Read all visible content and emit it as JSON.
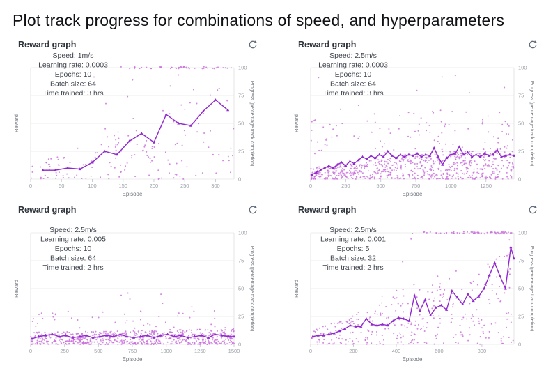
{
  "page_title": "Plot track progress for combinations of speed, and hyperparameters",
  "axes": {
    "x_label": "Episode",
    "y_left_label": "Reward",
    "y_right_label": "Progress (percentage track completion)",
    "right_ticks": [
      0,
      25,
      50,
      75,
      100
    ],
    "ylim": [
      0,
      100
    ],
    "grid": "horizontal-only",
    "legend": "none"
  },
  "colors": {
    "line": "#9128ce",
    "scatter": "#c86adb",
    "grid": "#ececec",
    "plot_border": "#e4e4e4",
    "tick_text": "#9aa0a6",
    "axis_label": "#6f757d",
    "annotation": "#3f454d",
    "panel_title": "#2f353d",
    "icon": "#5f6b7a",
    "page_title": "#0f1114"
  },
  "chart_data": [
    {
      "id": "speed-1ms-lr00003",
      "type": "scatter",
      "title": "Reward graph",
      "annotation": [
        "Speed: 1m/s",
        "Learning rate: 0.0003",
        "Epochs: 10",
        "Batch size: 64",
        "Time trained: 3 hrs"
      ],
      "hyperparameters": {
        "speed": "1m/s",
        "learning_rate": "0.0003",
        "epochs": 10,
        "batch_size": 64,
        "time_trained": "3 hrs"
      },
      "x_ticks": [
        0,
        50,
        100,
        150,
        200,
        250,
        300
      ],
      "x_max": 330,
      "ann_y": 11,
      "line": [
        [
          20,
          8
        ],
        [
          40,
          8
        ],
        [
          60,
          10
        ],
        [
          80,
          9
        ],
        [
          100,
          15
        ],
        [
          120,
          25
        ],
        [
          140,
          22
        ],
        [
          160,
          34
        ],
        [
          180,
          41
        ],
        [
          200,
          33
        ],
        [
          220,
          58
        ],
        [
          240,
          50
        ],
        [
          260,
          48
        ],
        [
          280,
          61
        ],
        [
          300,
          71
        ],
        [
          320,
          62
        ]
      ],
      "scatter": {
        "seed": 11,
        "count": 150,
        "band_base": 13,
        "band_rise": 75,
        "pow": 1.35,
        "extras": [
          {
            "frac": 0.07,
            "ymin": 35,
            "ymax": 95,
            "xmin_frac": 0.3
          }
        ],
        "top_row": {
          "from": 130,
          "to": 330,
          "count": 44
        }
      }
    },
    {
      "id": "speed-25ms-lr00003",
      "type": "scatter",
      "title": "Reward graph",
      "annotation": [
        "Speed: 2.5m/s",
        "Learning rate: 0.0003",
        "Epochs: 10",
        "Batch size: 64",
        "Time trained: 3 hrs"
      ],
      "hyperparameters": {
        "speed": "2.5m/s",
        "learning_rate": "0.0003",
        "epochs": 10,
        "batch_size": 64,
        "time_trained": "3 hrs"
      },
      "x_ticks": [
        0,
        250,
        500,
        750,
        1000,
        1250
      ],
      "x_max": 1450,
      "ann_y": 11,
      "line": [
        [
          10,
          4
        ],
        [
          40,
          6
        ],
        [
          70,
          8
        ],
        [
          100,
          10
        ],
        [
          130,
          12
        ],
        [
          160,
          10
        ],
        [
          190,
          13
        ],
        [
          220,
          15
        ],
        [
          250,
          12
        ],
        [
          280,
          16
        ],
        [
          310,
          14
        ],
        [
          340,
          17
        ],
        [
          370,
          20
        ],
        [
          400,
          18
        ],
        [
          430,
          21
        ],
        [
          460,
          19
        ],
        [
          490,
          22
        ],
        [
          520,
          20
        ],
        [
          550,
          25
        ],
        [
          580,
          21
        ],
        [
          610,
          19
        ],
        [
          640,
          22
        ],
        [
          670,
          20
        ],
        [
          700,
          22
        ],
        [
          730,
          21
        ],
        [
          760,
          23
        ],
        [
          790,
          20
        ],
        [
          820,
          22
        ],
        [
          850,
          21
        ],
        [
          880,
          28
        ],
        [
          910,
          20
        ],
        [
          940,
          13
        ],
        [
          970,
          19
        ],
        [
          1000,
          22
        ],
        [
          1030,
          23
        ],
        [
          1060,
          29
        ],
        [
          1090,
          22
        ],
        [
          1120,
          24
        ],
        [
          1150,
          20
        ],
        [
          1180,
          22
        ],
        [
          1210,
          20
        ],
        [
          1240,
          23
        ],
        [
          1270,
          21
        ],
        [
          1300,
          22
        ],
        [
          1330,
          26
        ],
        [
          1360,
          20
        ],
        [
          1390,
          21
        ],
        [
          1420,
          22
        ],
        [
          1450,
          21
        ]
      ],
      "scatter": {
        "seed": 22,
        "count": 640,
        "band_base": 11,
        "band_rise": 20,
        "pow": 1.3,
        "extras": [
          {
            "frac": 0.15,
            "ymin": 22,
            "ymax": 60
          },
          {
            "frac": 0.02,
            "ymin": 58,
            "ymax": 100
          }
        ],
        "top_row": null
      }
    },
    {
      "id": "speed-25ms-lr0005",
      "type": "scatter",
      "title": "Reward graph",
      "annotation": [
        "Speed: 2.5m/s",
        "Learning rate: 0.005",
        "Epochs: 10",
        "Batch size: 64",
        "Time trained: 2 hrs"
      ],
      "hyperparameters": {
        "speed": "2.5m/s",
        "learning_rate": "0.005",
        "epochs": 10,
        "batch_size": 64,
        "time_trained": "2 hrs"
      },
      "x_ticks": [
        0,
        250,
        500,
        750,
        1000,
        1250,
        1500
      ],
      "x_max": 1500,
      "ann_y": 24,
      "line": [
        [
          10,
          5
        ],
        [
          60,
          7
        ],
        [
          110,
          8
        ],
        [
          160,
          9
        ],
        [
          210,
          7
        ],
        [
          260,
          8
        ],
        [
          310,
          6
        ],
        [
          360,
          7
        ],
        [
          410,
          8
        ],
        [
          460,
          6
        ],
        [
          510,
          7
        ],
        [
          560,
          8
        ],
        [
          610,
          7
        ],
        [
          660,
          9
        ],
        [
          710,
          7
        ],
        [
          760,
          6
        ],
        [
          810,
          7
        ],
        [
          860,
          8
        ],
        [
          910,
          6
        ],
        [
          960,
          8
        ],
        [
          1010,
          9
        ],
        [
          1060,
          7
        ],
        [
          1110,
          8
        ],
        [
          1160,
          6
        ],
        [
          1210,
          7
        ],
        [
          1260,
          8
        ],
        [
          1310,
          6
        ],
        [
          1360,
          9
        ],
        [
          1410,
          8
        ],
        [
          1460,
          7
        ],
        [
          1500,
          7
        ]
      ],
      "scatter": {
        "seed": 33,
        "count": 640,
        "band_base": 11,
        "band_rise": 3,
        "pow": 1.45,
        "extras": [
          {
            "frac": 0.09,
            "ymin": 8,
            "ymax": 30
          },
          {
            "frac": 0.012,
            "ymin": 26,
            "ymax": 50
          }
        ],
        "top_row": null
      }
    },
    {
      "id": "speed-25ms-lr0001",
      "type": "scatter",
      "title": "Reward graph",
      "annotation": [
        "Speed: 2.5m/s",
        "Learning rate: 0.001",
        "Epochs: 5",
        "Batch size: 32",
        "Time trained: 2 hrs"
      ],
      "hyperparameters": {
        "speed": "2.5m/s",
        "learning_rate": "0.001",
        "epochs": 5,
        "batch_size": 32,
        "time_trained": "2 hrs"
      },
      "x_ticks": [
        0,
        200,
        400,
        600,
        800
      ],
      "x_max": 950,
      "ann_y": 24,
      "line": [
        [
          10,
          7
        ],
        [
          35,
          8
        ],
        [
          60,
          8
        ],
        [
          85,
          9
        ],
        [
          110,
          10
        ],
        [
          135,
          12
        ],
        [
          160,
          14
        ],
        [
          185,
          17
        ],
        [
          210,
          16
        ],
        [
          235,
          16
        ],
        [
          260,
          23
        ],
        [
          285,
          18
        ],
        [
          310,
          17
        ],
        [
          335,
          18
        ],
        [
          360,
          17
        ],
        [
          385,
          21
        ],
        [
          410,
          24
        ],
        [
          435,
          23
        ],
        [
          460,
          21
        ],
        [
          485,
          44
        ],
        [
          510,
          30
        ],
        [
          535,
          40
        ],
        [
          560,
          26
        ],
        [
          585,
          33
        ],
        [
          610,
          35
        ],
        [
          635,
          31
        ],
        [
          660,
          48
        ],
        [
          685,
          42
        ],
        [
          710,
          36
        ],
        [
          735,
          45
        ],
        [
          760,
          39
        ],
        [
          785,
          43
        ],
        [
          810,
          50
        ],
        [
          835,
          62
        ],
        [
          860,
          73
        ],
        [
          885,
          61
        ],
        [
          910,
          50
        ],
        [
          935,
          87
        ],
        [
          950,
          77
        ]
      ],
      "scatter": {
        "seed": 44,
        "count": 300,
        "band_base": 12,
        "band_rise": 72,
        "pow": 1.3,
        "extras": [
          {
            "frac": 0.06,
            "ymin": 40,
            "ymax": 95,
            "xmin_frac": 0.35
          }
        ],
        "top_row": {
          "from": 460,
          "to": 950,
          "count": 66
        }
      }
    }
  ]
}
